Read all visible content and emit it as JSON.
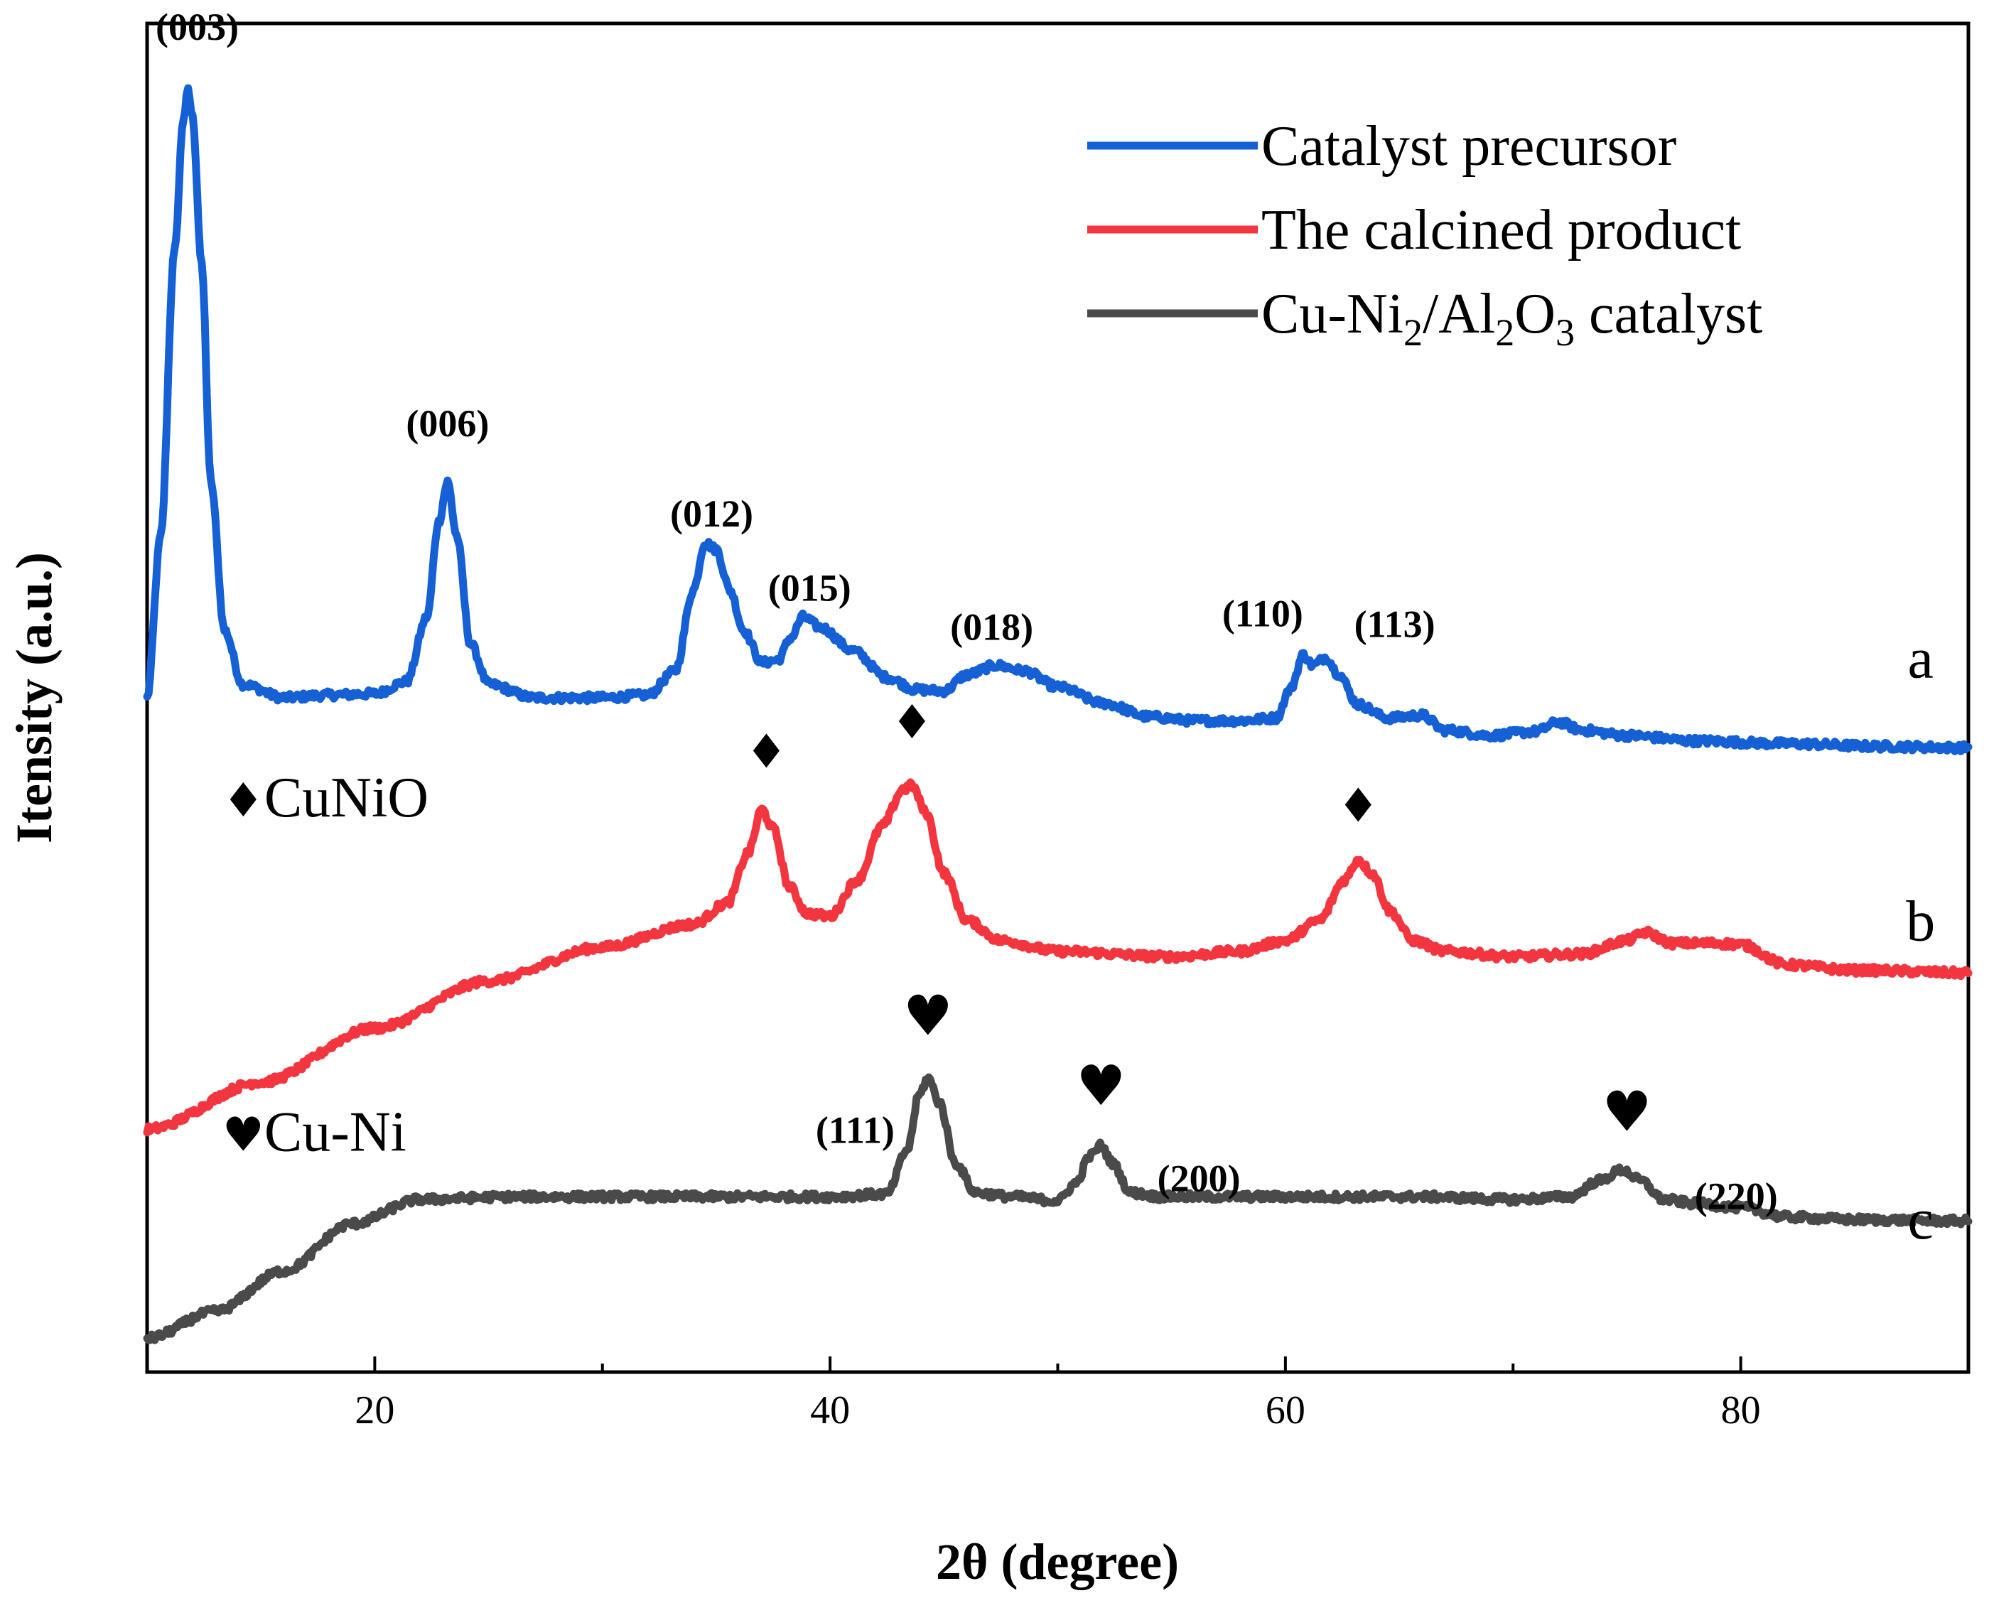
{
  "chart_data": {
    "type": "line",
    "xlabel": "2θ (degree)",
    "ylabel": "Itensity (a.u.)",
    "xlim": [
      10,
      90
    ],
    "ylim": [
      0,
      100
    ],
    "xticks": [
      20,
      40,
      60,
      80
    ],
    "xtick_labels": [
      "20",
      "40",
      "60",
      "80"
    ],
    "minor_xticks": [
      10,
      30,
      50,
      70,
      90
    ],
    "grid": false,
    "legend_position": "top-right",
    "series": [
      {
        "name": "Catalyst precursor",
        "tag": "a",
        "color": "#1560d4",
        "points": [
          [
            10,
            50
          ],
          [
            10.6,
            62
          ],
          [
            11.2,
            83
          ],
          [
            11.6,
            93
          ],
          [
            11.8,
            95
          ],
          [
            12.0,
            93
          ],
          [
            12.4,
            82
          ],
          [
            12.8,
            66
          ],
          [
            13.4,
            55
          ],
          [
            14.2,
            51
          ],
          [
            16,
            50
          ],
          [
            18,
            50.2
          ],
          [
            20,
            50.3
          ],
          [
            21.4,
            51.2
          ],
          [
            22.3,
            56
          ],
          [
            22.8,
            63
          ],
          [
            23.2,
            66
          ],
          [
            23.6,
            62
          ],
          [
            24.2,
            54
          ],
          [
            25,
            51
          ],
          [
            27,
            50
          ],
          [
            30,
            50
          ],
          [
            32,
            50.2
          ],
          [
            33.2,
            52
          ],
          [
            34,
            58
          ],
          [
            34.5,
            61.5
          ],
          [
            35,
            61
          ],
          [
            35.6,
            58
          ],
          [
            36.2,
            55
          ],
          [
            37,
            52.6
          ],
          [
            37.7,
            52.8
          ],
          [
            38.3,
            54.5
          ],
          [
            38.8,
            56
          ],
          [
            39.6,
            55.2
          ],
          [
            41,
            53.5
          ],
          [
            42.5,
            51.5
          ],
          [
            43.8,
            50.6
          ],
          [
            45,
            50.5
          ],
          [
            46,
            51.7
          ],
          [
            47.3,
            52.4
          ],
          [
            48.5,
            52
          ],
          [
            50,
            50.8
          ],
          [
            52,
            49.6
          ],
          [
            54,
            48.6
          ],
          [
            56,
            48.3
          ],
          [
            58,
            48.3
          ],
          [
            59.6,
            48.5
          ],
          [
            60.2,
            50.6
          ],
          [
            60.8,
            53.2
          ],
          [
            61.2,
            52.4
          ],
          [
            61.8,
            53
          ],
          [
            62.3,
            51.8
          ],
          [
            63.2,
            49.5
          ],
          [
            64.5,
            48.5
          ],
          [
            66,
            48.7
          ],
          [
            67,
            47.6
          ],
          [
            69,
            47.2
          ],
          [
            71,
            47.5
          ],
          [
            72,
            48.2
          ],
          [
            73,
            47.6
          ],
          [
            75,
            47.2
          ],
          [
            78,
            46.8
          ],
          [
            82,
            46.6
          ],
          [
            86,
            46.4
          ],
          [
            90,
            46.3
          ]
        ]
      },
      {
        "name": "The calcined product",
        "tag": "b",
        "color": "#f2353e",
        "points": [
          [
            10,
            18
          ],
          [
            15,
            21.5
          ],
          [
            20,
            25.5
          ],
          [
            25,
            29
          ],
          [
            30,
            31.5
          ],
          [
            34,
            33.2
          ],
          [
            35.5,
            34.8
          ],
          [
            36.4,
            38.5
          ],
          [
            37,
            41.7
          ],
          [
            37.5,
            40.3
          ],
          [
            38.2,
            36
          ],
          [
            39,
            34
          ],
          [
            40,
            33.8
          ],
          [
            41.2,
            36.5
          ],
          [
            42.3,
            40.5
          ],
          [
            43.2,
            43.2
          ],
          [
            43.6,
            43.5
          ],
          [
            44.2,
            41.5
          ],
          [
            45,
            37
          ],
          [
            46,
            33.5
          ],
          [
            47.5,
            32
          ],
          [
            50,
            31.2
          ],
          [
            55,
            30.8
          ],
          [
            58,
            31.2
          ],
          [
            60,
            32
          ],
          [
            61.5,
            33.5
          ],
          [
            62.6,
            36.5
          ],
          [
            63.2,
            38
          ],
          [
            63.8,
            37
          ],
          [
            64.6,
            34.2
          ],
          [
            65.6,
            32
          ],
          [
            67,
            31.2
          ],
          [
            70,
            30.8
          ],
          [
            73,
            31
          ],
          [
            75,
            32
          ],
          [
            75.8,
            32.6
          ],
          [
            77,
            31.8
          ],
          [
            79,
            31.8
          ],
          [
            80,
            31.7
          ],
          [
            82,
            30.2
          ],
          [
            85,
            29.8
          ],
          [
            90,
            29.6
          ]
        ]
      },
      {
        "name": "Cu-Ni2/Al2O3 catalyst",
        "name_parts": [
          "Cu-Ni",
          "2",
          "/Al",
          "2",
          "O",
          "3",
          " catalyst"
        ],
        "tag": "c",
        "color": "#4a4a4a",
        "points": [
          [
            10,
            2.5
          ],
          [
            13,
            4.5
          ],
          [
            16,
            7.5
          ],
          [
            19,
            11
          ],
          [
            22,
            12.8
          ],
          [
            26,
            13
          ],
          [
            30,
            13
          ],
          [
            35,
            13
          ],
          [
            40,
            13
          ],
          [
            42.5,
            13.2
          ],
          [
            43.4,
            16.5
          ],
          [
            43.9,
            20.5
          ],
          [
            44.3,
            21.8
          ],
          [
            44.8,
            20
          ],
          [
            45.5,
            15.5
          ],
          [
            46.4,
            13.3
          ],
          [
            48,
            13
          ],
          [
            50,
            12.7
          ],
          [
            50.8,
            14
          ],
          [
            51.4,
            16
          ],
          [
            51.9,
            16.8
          ],
          [
            52.4,
            15.5
          ],
          [
            53.2,
            13.3
          ],
          [
            54.5,
            13
          ],
          [
            58,
            13
          ],
          [
            62,
            13
          ],
          [
            66,
            13
          ],
          [
            70,
            12.8
          ],
          [
            72.5,
            13
          ],
          [
            73.8,
            14.2
          ],
          [
            74.8,
            15
          ],
          [
            75.6,
            14.2
          ],
          [
            76.6,
            12.8
          ],
          [
            78,
            12.5
          ],
          [
            80,
            12.2
          ],
          [
            82,
            11.5
          ],
          [
            85,
            11.3
          ],
          [
            90,
            11.2
          ]
        ]
      }
    ],
    "peak_labels": [
      {
        "text": "(003)",
        "x": 12.2,
        "y": 98.8
      },
      {
        "text": "(006)",
        "x": 23.2,
        "y": 69.4
      },
      {
        "text": "(012)",
        "x": 34.8,
        "y": 62.7
      },
      {
        "text": "(015)",
        "x": 39.1,
        "y": 57.2
      },
      {
        "text": "(018)",
        "x": 47.1,
        "y": 54.3
      },
      {
        "text": "(110)",
        "x": 59.0,
        "y": 55.3
      },
      {
        "text": "(113)",
        "x": 64.8,
        "y": 54.5
      },
      {
        "text": "(111)",
        "x": 41.1,
        "y": 17.0
      },
      {
        "text": "(200)",
        "x": 56.2,
        "y": 13.4
      },
      {
        "text": "(220)",
        "x": 79.8,
        "y": 12.1
      }
    ],
    "markers": [
      {
        "symbol": "♦",
        "x": 37.2,
        "y": 44.8
      },
      {
        "symbol": "♦",
        "x": 43.6,
        "y": 47.0
      },
      {
        "symbol": "♦",
        "x": 63.2,
        "y": 40.8
      },
      {
        "symbol": "♥",
        "x": 44.3,
        "y": 25.0
      },
      {
        "symbol": "♥",
        "x": 51.9,
        "y": 19.8
      },
      {
        "symbol": "♥",
        "x": 75.0,
        "y": 17.9
      }
    ],
    "phase_legend": [
      {
        "symbol": "♦",
        "text": "CuNiO",
        "x": 13.3,
        "y": 41.2
      },
      {
        "symbol": "♥",
        "text": "Cu-Ni",
        "x": 13.3,
        "y": 16.4
      }
    ],
    "curve_tags": [
      {
        "text": "a",
        "x": 87.9,
        "y": 51.5
      },
      {
        "text": "b",
        "x": 87.9,
        "y": 32.0
      },
      {
        "text": "c",
        "x": 87.9,
        "y": 9.9
      }
    ]
  }
}
